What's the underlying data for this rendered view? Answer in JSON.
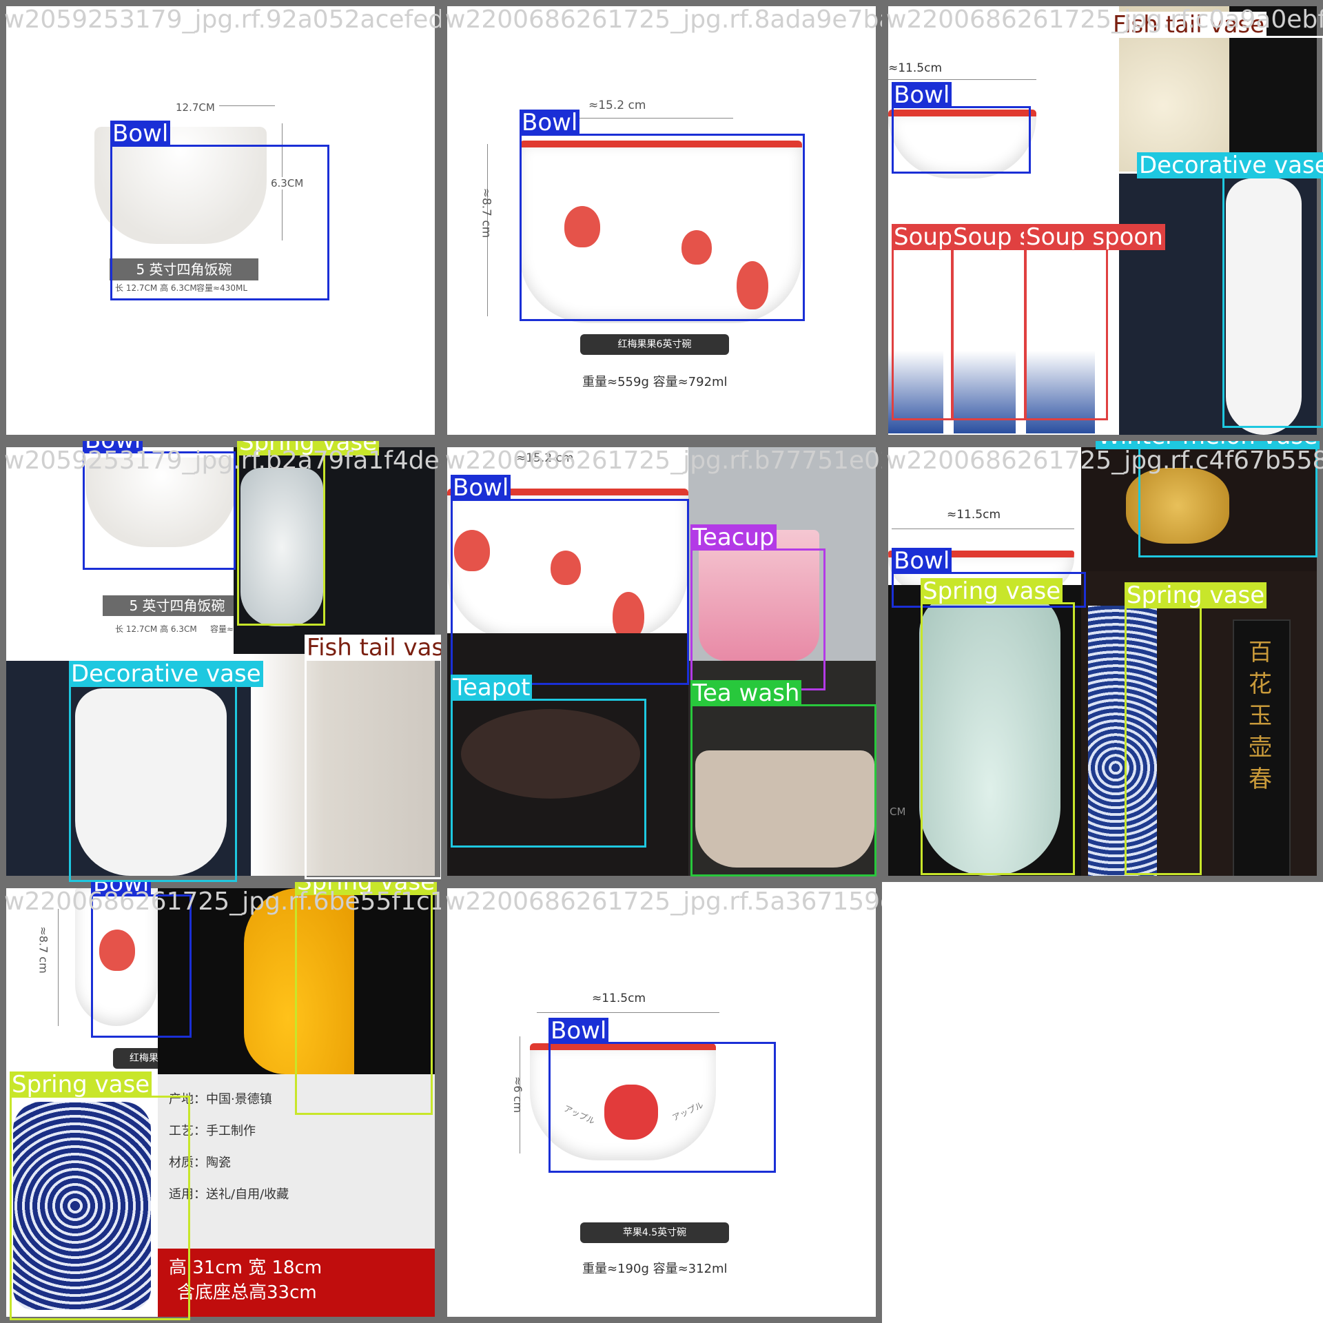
{
  "tiles": [
    {
      "filename": "w2059253179_jpg.rf.92a052acefedfecaaf2ff",
      "boxes": [
        {
          "label": "Bowl"
        }
      ],
      "product": {
        "dim_w": "12.7CM",
        "dim_h": "6.3CM",
        "name": "5 英寸四角饭碗",
        "spec1": "长 12.7CM  高 6.3CM",
        "spec2": "容量≈430ML"
      }
    },
    {
      "filename": "w2200686261725_jpg.rf.8ada9e7ba95e4028368",
      "boxes": [
        {
          "label": "Bowl"
        }
      ],
      "product": {
        "dim_w": "≈15.2 cm",
        "dim_h": "≈8.7 cm",
        "name": "红梅果果6英寸碗",
        "spec": "重量≈559g 容量≈792ml"
      }
    },
    {
      "filename": "w2200686261725_jpg.rf.c0a9a0ebfca",
      "boxes": [
        {
          "label": "Fish tail vase"
        },
        {
          "label": "Bowl"
        },
        {
          "label": "Decorative vase"
        },
        {
          "label": "Soup"
        },
        {
          "label": "Soup s"
        },
        {
          "label": "Soup spoon"
        }
      ],
      "product": {
        "dim_w": "≈11.5cm"
      }
    },
    {
      "filename": "w2059253179_jpg.rf.b2a79fa1f4deab2a330",
      "boxes": [
        {
          "label": "Bowl"
        },
        {
          "label": "Spring vase"
        },
        {
          "label": "Fish tail vase"
        },
        {
          "label": "Decorative vase"
        }
      ],
      "product": {
        "name": "5 英寸四角饭碗",
        "spec1": "长 12.7CM 高 6.3CM",
        "spec2": "容量≈"
      }
    },
    {
      "filename": "w2200686261725_jpg.rf.b77751e02c5eb4a2",
      "boxes": [
        {
          "label": "Bowl"
        },
        {
          "label": "Teacup"
        },
        {
          "label": "Teapot"
        },
        {
          "label": "Tea wash"
        }
      ],
      "product": {
        "dim_w": "≈15.2 cm"
      }
    },
    {
      "filename": "w2200686261725_jpg.rf.c4f67b5584f",
      "boxes": [
        {
          "label": "Winter melon vase"
        },
        {
          "label": "Bowl"
        },
        {
          "label": "Spring vase"
        },
        {
          "label": "Spring vase"
        }
      ],
      "product": {
        "dim_w": "≈11.5cm",
        "unit": "CM",
        "seal": [
          "百",
          "花",
          "玉",
          "壶",
          "春"
        ]
      }
    },
    {
      "filename": "w2200686261725_jpg.rf.6be55f1c166ee",
      "boxes": [
        {
          "label": "Bowl"
        },
        {
          "label": "Spring vase"
        },
        {
          "label": "Spring vase"
        }
      ],
      "product": {
        "dim_h": "≈8.7 cm",
        "name": "红梅果",
        "origin": "产地：中国·景德镇",
        "craft": "工艺：手工制作",
        "material": "材质：陶瓷",
        "use": "适用：送礼/自用/收藏",
        "size1": "高 31cm   宽 18cm",
        "size2": "含底座总高33cm"
      }
    },
    {
      "filename": "w2200686261725_jpg.rf.5a367159d45dfd8ad6",
      "boxes": [
        {
          "label": "Bowl"
        }
      ],
      "product": {
        "dim_w": "≈11.5cm",
        "dim_h": "≈6 cm",
        "name": "苹果4.5英寸碗",
        "spec": "重量≈190g 容量≈312ml",
        "text1": "アップル",
        "text2": "アップル"
      }
    }
  ],
  "colors": {
    "Bowl": "#1a2fd6",
    "Soup spoon": "#e04040",
    "Spring vase": "#c8e62a",
    "Decorative vase": "#1ec8e0",
    "Teacup": "#b33ae6",
    "Tea wash": "#28c83c",
    "Teapot": "#1ec8e0",
    "Fish tail vase": "#7a1f10",
    "Winter melon vase": "#1ec8e0"
  }
}
